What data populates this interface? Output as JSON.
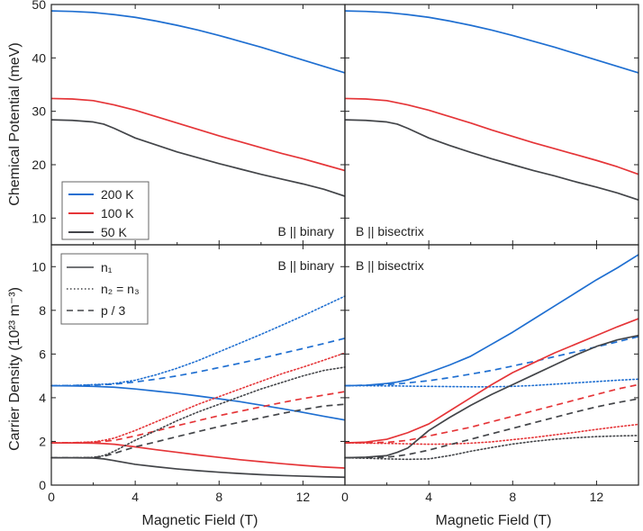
{
  "chart_data": {
    "type": "line",
    "colors": {
      "200 K": "#1f6fd1",
      "100 K": "#e53538",
      "50 K": "#434549"
    },
    "x_axis": {
      "label": "Magnetic Field (T)",
      "xlim": [
        0,
        14
      ],
      "ticks": [
        0,
        4,
        8,
        12
      ],
      "tick_labels": [
        "0",
        "4",
        "8",
        "12"
      ]
    },
    "top_panels": {
      "ylabel": "Chemical Potential (meV)",
      "ylim": [
        5,
        50
      ],
      "ticks": [
        10,
        20,
        30,
        40,
        50
      ],
      "tick_labels": [
        "10",
        "20",
        "30",
        "40",
        "50"
      ]
    },
    "bottom_panels": {
      "ylabel": "Carrier Density (10²³ m⁻³)",
      "ylim": [
        0,
        11
      ],
      "ticks": [
        0,
        2,
        4,
        6,
        8,
        10
      ],
      "tick_labels": [
        "0",
        "2",
        "4",
        "6",
        "8",
        "10"
      ]
    },
    "x": [
      0,
      1,
      2,
      2.5,
      3,
      4,
      5,
      6,
      7,
      8,
      9,
      10,
      11,
      12,
      13,
      14
    ],
    "panels": [
      {
        "id": "mu_binary",
        "position": "top-left",
        "annotation": "B || binary",
        "series": [
          {
            "name": "200 K",
            "style": "solid",
            "values": [
              48.8,
              48.7,
              48.5,
              48.3,
              48.1,
              47.6,
              46.9,
              46.1,
              45.2,
              44.2,
              43.1,
              42.0,
              40.8,
              39.6,
              38.4,
              37.2
            ]
          },
          {
            "name": "100 K",
            "style": "solid",
            "values": [
              32.4,
              32.3,
              32.0,
              31.6,
              31.2,
              30.2,
              29.0,
              27.8,
              26.6,
              25.4,
              24.3,
              23.2,
              22.1,
              21.1,
              20.0,
              18.9
            ]
          },
          {
            "name": "50 K",
            "style": "solid",
            "values": [
              28.4,
              28.3,
              28.0,
              27.6,
              26.8,
              25.0,
              23.7,
              22.4,
              21.3,
              20.2,
              19.2,
              18.2,
              17.3,
              16.4,
              15.4,
              14.1
            ]
          }
        ]
      },
      {
        "id": "mu_bisectrix",
        "position": "top-right",
        "annotation": "B || bisectrix",
        "series": [
          {
            "name": "200 K",
            "style": "solid",
            "values": [
              48.8,
              48.7,
              48.5,
              48.3,
              48.1,
              47.6,
              46.9,
              46.1,
              45.2,
              44.2,
              43.1,
              42.0,
              40.8,
              39.6,
              38.4,
              37.2
            ]
          },
          {
            "name": "100 K",
            "style": "solid",
            "values": [
              32.4,
              32.3,
              32.0,
              31.6,
              31.2,
              30.2,
              29.0,
              27.8,
              26.5,
              25.3,
              24.1,
              23.0,
              21.9,
              20.8,
              19.6,
              18.2
            ]
          },
          {
            "name": "50 K",
            "style": "solid",
            "values": [
              28.4,
              28.3,
              28.0,
              27.6,
              26.8,
              25.0,
              23.6,
              22.3,
              21.1,
              20.0,
              18.9,
              17.9,
              16.8,
              15.8,
              14.7,
              13.4
            ]
          }
        ]
      },
      {
        "id": "n_binary",
        "position": "bottom-left",
        "annotation": "B || binary",
        "series": [
          {
            "name": "200 K n1",
            "temp": "200 K",
            "style": "solid",
            "values": [
              4.55,
              4.54,
              4.52,
              4.5,
              4.48,
              4.4,
              4.3,
              4.2,
              4.08,
              3.95,
              3.82,
              3.66,
              3.5,
              3.33,
              3.15,
              2.98
            ]
          },
          {
            "name": "200 K n2 = n3",
            "temp": "200 K",
            "style": "dotted",
            "values": [
              4.55,
              4.56,
              4.6,
              4.62,
              4.65,
              4.8,
              5.05,
              5.35,
              5.7,
              6.1,
              6.5,
              6.9,
              7.32,
              7.75,
              8.2,
              8.65
            ]
          },
          {
            "name": "200 K p / 3",
            "temp": "200 K",
            "style": "dashed",
            "values": [
              4.55,
              4.56,
              4.58,
              4.6,
              4.62,
              4.72,
              4.85,
              5.0,
              5.18,
              5.38,
              5.58,
              5.8,
              6.03,
              6.25,
              6.48,
              6.72
            ]
          },
          {
            "name": "100 K n1",
            "temp": "100 K",
            "style": "solid",
            "values": [
              1.93,
              1.93,
              1.92,
              1.9,
              1.87,
              1.75,
              1.62,
              1.5,
              1.38,
              1.27,
              1.16,
              1.07,
              0.98,
              0.9,
              0.83,
              0.78
            ]
          },
          {
            "name": "100 K n2 = n3",
            "temp": "100 K",
            "style": "dotted",
            "values": [
              1.93,
              1.94,
              1.98,
              2.05,
              2.15,
              2.5,
              2.9,
              3.3,
              3.7,
              4.05,
              4.4,
              4.75,
              5.1,
              5.4,
              5.72,
              6.05
            ]
          },
          {
            "name": "100 K p / 3",
            "temp": "100 K",
            "style": "dashed",
            "values": [
              1.93,
              1.94,
              1.96,
              2.0,
              2.05,
              2.25,
              2.48,
              2.72,
              2.95,
              3.18,
              3.38,
              3.58,
              3.78,
              3.96,
              4.12,
              4.28
            ]
          },
          {
            "name": "50 K n1",
            "temp": "50 K",
            "style": "solid",
            "values": [
              1.25,
              1.25,
              1.24,
              1.2,
              1.12,
              0.95,
              0.84,
              0.74,
              0.66,
              0.59,
              0.53,
              0.48,
              0.44,
              0.41,
              0.38,
              0.36
            ]
          },
          {
            "name": "50 K n2 = n3",
            "temp": "50 K",
            "style": "dotted",
            "values": [
              1.25,
              1.25,
              1.27,
              1.35,
              1.55,
              2.05,
              2.5,
              2.95,
              3.35,
              3.7,
              4.05,
              4.4,
              4.7,
              5.0,
              5.25,
              5.4
            ]
          },
          {
            "name": "50 K p / 3",
            "temp": "50 K",
            "style": "dashed",
            "values": [
              1.25,
              1.25,
              1.26,
              1.32,
              1.45,
              1.75,
              1.98,
              2.22,
              2.45,
              2.68,
              2.88,
              3.08,
              3.28,
              3.46,
              3.62,
              3.7
            ]
          }
        ]
      },
      {
        "id": "n_bisectrix",
        "position": "bottom-right",
        "annotation": "B || bisectrix",
        "series": [
          {
            "name": "200 K n1",
            "temp": "200 K",
            "style": "solid",
            "values": [
              4.55,
              4.57,
              4.65,
              4.72,
              4.82,
              5.15,
              5.5,
              5.9,
              6.45,
              7.0,
              7.6,
              8.2,
              8.8,
              9.4,
              9.95,
              10.55
            ]
          },
          {
            "name": "200 K n2 = n3",
            "temp": "200 K",
            "style": "dotted",
            "values": [
              4.55,
              4.55,
              4.54,
              4.54,
              4.53,
              4.52,
              4.51,
              4.5,
              4.5,
              4.52,
              4.56,
              4.62,
              4.68,
              4.74,
              4.8,
              4.85
            ]
          },
          {
            "name": "200 K p / 3",
            "temp": "200 K",
            "style": "dashed",
            "values": [
              4.55,
              4.57,
              4.6,
              4.63,
              4.68,
              4.78,
              4.92,
              5.08,
              5.25,
              5.45,
              5.66,
              5.88,
              6.1,
              6.33,
              6.56,
              6.8
            ]
          },
          {
            "name": "100 K n1",
            "temp": "100 K",
            "style": "solid",
            "values": [
              1.93,
              1.97,
              2.1,
              2.25,
              2.4,
              2.8,
              3.4,
              4.0,
              4.6,
              5.15,
              5.6,
              6.05,
              6.45,
              6.85,
              7.25,
              7.62
            ]
          },
          {
            "name": "100 K n2 = n3",
            "temp": "100 K",
            "style": "dotted",
            "values": [
              1.93,
              1.92,
              1.91,
              1.9,
              1.89,
              1.87,
              1.88,
              1.92,
              1.98,
              2.08,
              2.18,
              2.3,
              2.42,
              2.55,
              2.67,
              2.78
            ]
          },
          {
            "name": "100 K p / 3",
            "temp": "100 K",
            "style": "dashed",
            "values": [
              1.93,
              1.94,
              1.96,
              2.0,
              2.05,
              2.25,
              2.45,
              2.65,
              2.9,
              3.15,
              3.4,
              3.65,
              3.9,
              4.15,
              4.4,
              4.6
            ]
          },
          {
            "name": "50 K n1",
            "temp": "50 K",
            "style": "solid",
            "values": [
              1.25,
              1.28,
              1.35,
              1.5,
              1.7,
              2.5,
              3.1,
              3.65,
              4.15,
              4.6,
              5.05,
              5.5,
              5.95,
              6.35,
              6.65,
              6.85
            ]
          },
          {
            "name": "50 K n2 = n3",
            "temp": "50 K",
            "style": "dotted",
            "values": [
              1.25,
              1.23,
              1.2,
              1.19,
              1.18,
              1.2,
              1.35,
              1.55,
              1.72,
              1.88,
              2.0,
              2.1,
              2.17,
              2.22,
              2.25,
              2.27
            ]
          },
          {
            "name": "50 K p / 3",
            "temp": "50 K",
            "style": "dashed",
            "values": [
              1.25,
              1.26,
              1.28,
              1.33,
              1.4,
              1.6,
              1.85,
              2.1,
              2.35,
              2.6,
              2.85,
              3.1,
              3.35,
              3.58,
              3.78,
              3.95
            ]
          }
        ]
      }
    ],
    "legend_temperature": {
      "position": "lower-left of top-left panel",
      "entries": [
        {
          "label": "200 K",
          "temp": "200 K"
        },
        {
          "label": "100 K",
          "temp": "100 K"
        },
        {
          "label": "50 K",
          "temp": "50 K"
        }
      ]
    },
    "legend_carrier": {
      "position": "top-left of bottom-left panel",
      "entries": [
        {
          "label": "n₁",
          "style": "solid"
        },
        {
          "label": "n₂ = n₃",
          "style": "dotted"
        },
        {
          "label": "p / 3",
          "style": "dashed"
        }
      ]
    }
  }
}
